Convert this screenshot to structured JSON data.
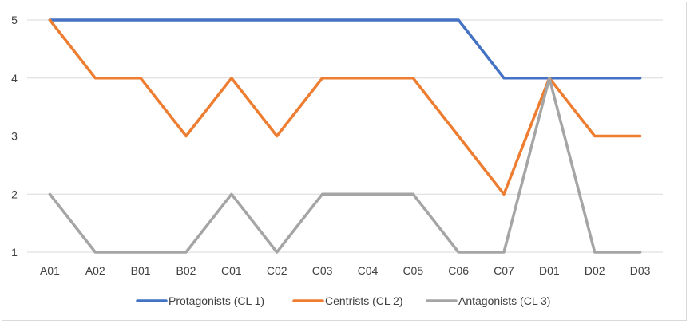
{
  "chart_data": {
    "type": "line",
    "categories": [
      "A01",
      "A02",
      "B01",
      "B02",
      "C01",
      "C02",
      "C03",
      "C04",
      "C05",
      "C06",
      "C07",
      "D01",
      "D02",
      "D03"
    ],
    "series": [
      {
        "name": "Protagonists (CL 1)",
        "color": "#4472c4",
        "values": [
          5,
          5,
          5,
          5,
          5,
          5,
          5,
          5,
          5,
          5,
          4,
          4,
          4,
          4
        ]
      },
      {
        "name": "Centrists (CL 2)",
        "color": "#ed7d31",
        "values": [
          5,
          4,
          4,
          3,
          4,
          3,
          4,
          4,
          4,
          3,
          2,
          4,
          3,
          3
        ]
      },
      {
        "name": "Antagonists (CL 3)",
        "color": "#a5a5a5",
        "values": [
          2,
          1,
          1,
          1,
          2,
          1,
          2,
          2,
          2,
          1,
          1,
          4,
          1,
          1
        ]
      }
    ],
    "yticks": [
      1,
      2,
      3,
      4,
      5
    ],
    "ylim": [
      1,
      5
    ],
    "grid": true,
    "legend": "bottom"
  }
}
